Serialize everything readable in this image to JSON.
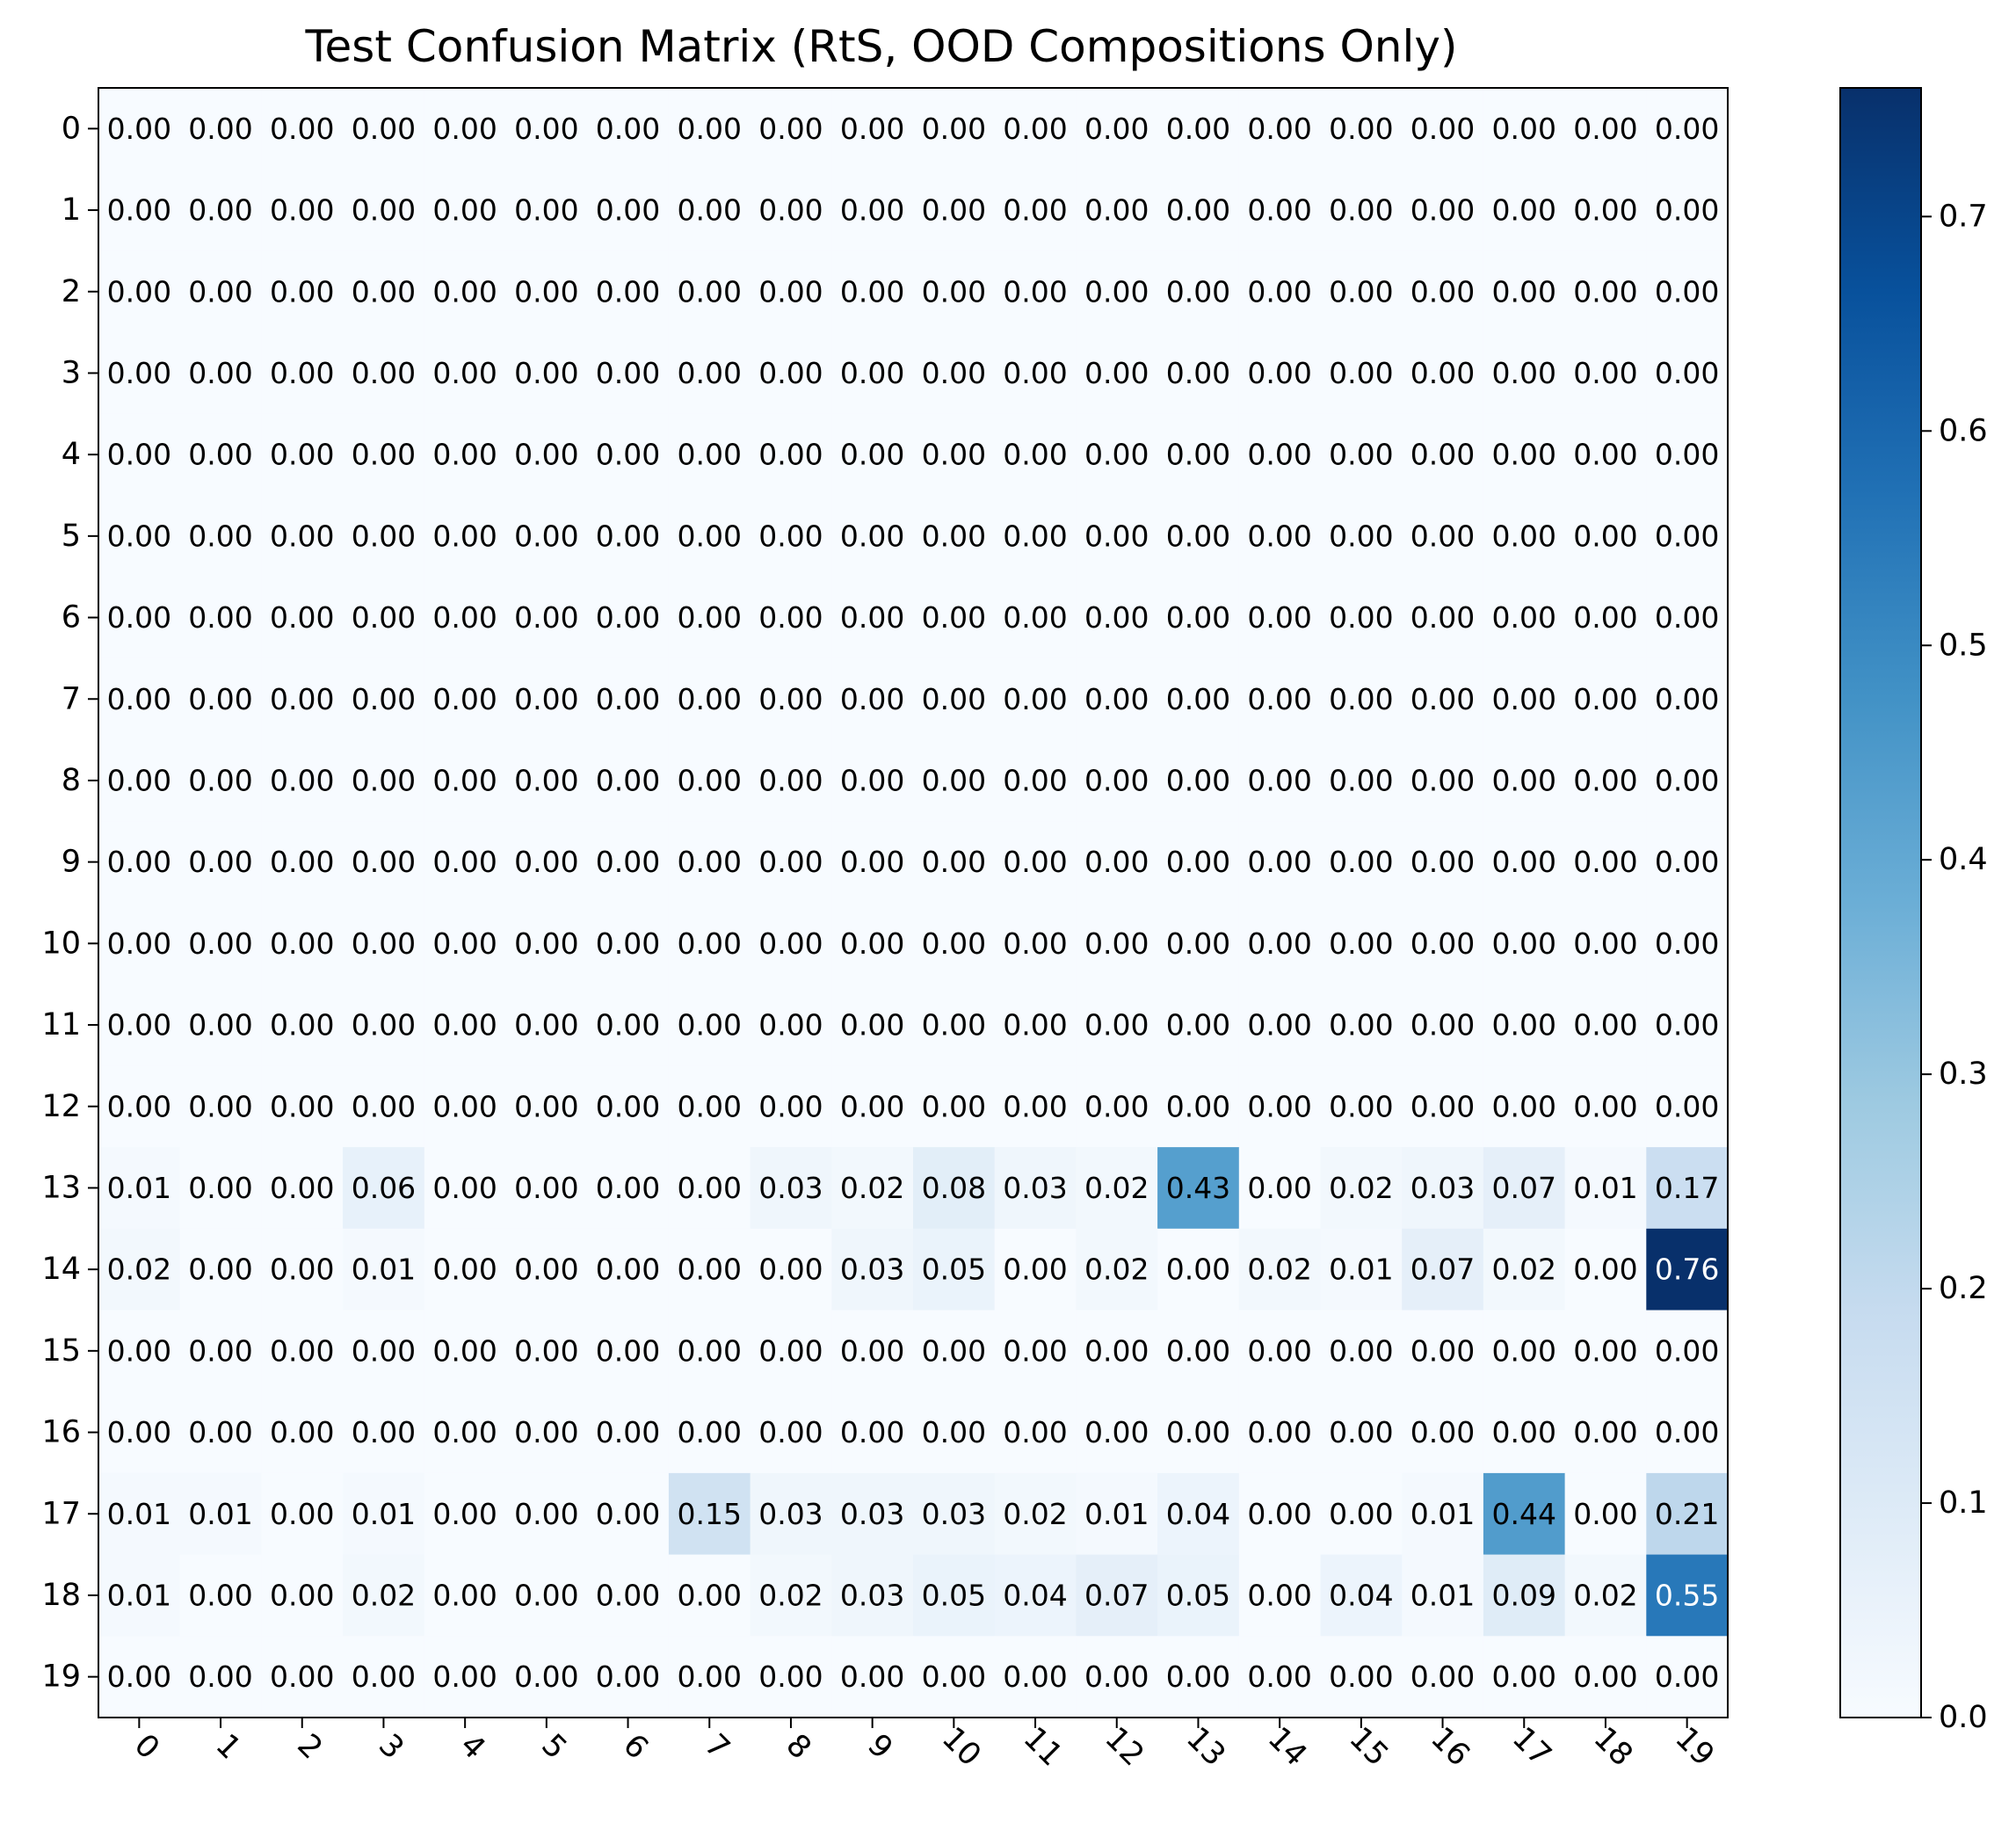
{
  "chart_data": {
    "type": "heatmap",
    "title": "Test Confusion Matrix (RtS, OOD Compositions Only)",
    "xlabel": "",
    "ylabel": "",
    "row_labels": [
      "0",
      "1",
      "2",
      "3",
      "4",
      "5",
      "6",
      "7",
      "8",
      "9",
      "10",
      "11",
      "12",
      "13",
      "14",
      "15",
      "16",
      "17",
      "18",
      "19"
    ],
    "col_labels": [
      "0",
      "1",
      "2",
      "3",
      "4",
      "5",
      "6",
      "7",
      "8",
      "9",
      "10",
      "11",
      "12",
      "13",
      "14",
      "15",
      "16",
      "17",
      "18",
      "19"
    ],
    "values": [
      [
        0,
        0,
        0,
        0,
        0,
        0,
        0,
        0,
        0,
        0,
        0,
        0,
        0,
        0,
        0,
        0,
        0,
        0,
        0,
        0
      ],
      [
        0,
        0,
        0,
        0,
        0,
        0,
        0,
        0,
        0,
        0,
        0,
        0,
        0,
        0,
        0,
        0,
        0,
        0,
        0,
        0
      ],
      [
        0,
        0,
        0,
        0,
        0,
        0,
        0,
        0,
        0,
        0,
        0,
        0,
        0,
        0,
        0,
        0,
        0,
        0,
        0,
        0
      ],
      [
        0,
        0,
        0,
        0,
        0,
        0,
        0,
        0,
        0,
        0,
        0,
        0,
        0,
        0,
        0,
        0,
        0,
        0,
        0,
        0
      ],
      [
        0,
        0,
        0,
        0,
        0,
        0,
        0,
        0,
        0,
        0,
        0,
        0,
        0,
        0,
        0,
        0,
        0,
        0,
        0,
        0
      ],
      [
        0,
        0,
        0,
        0,
        0,
        0,
        0,
        0,
        0,
        0,
        0,
        0,
        0,
        0,
        0,
        0,
        0,
        0,
        0,
        0
      ],
      [
        0,
        0,
        0,
        0,
        0,
        0,
        0,
        0,
        0,
        0,
        0,
        0,
        0,
        0,
        0,
        0,
        0,
        0,
        0,
        0
      ],
      [
        0,
        0,
        0,
        0,
        0,
        0,
        0,
        0,
        0,
        0,
        0,
        0,
        0,
        0,
        0,
        0,
        0,
        0,
        0,
        0
      ],
      [
        0,
        0,
        0,
        0,
        0,
        0,
        0,
        0,
        0,
        0,
        0,
        0,
        0,
        0,
        0,
        0,
        0,
        0,
        0,
        0
      ],
      [
        0,
        0,
        0,
        0,
        0,
        0,
        0,
        0,
        0,
        0,
        0,
        0,
        0,
        0,
        0,
        0,
        0,
        0,
        0,
        0
      ],
      [
        0,
        0,
        0,
        0,
        0,
        0,
        0,
        0,
        0,
        0,
        0,
        0,
        0,
        0,
        0,
        0,
        0,
        0,
        0,
        0
      ],
      [
        0,
        0,
        0,
        0,
        0,
        0,
        0,
        0,
        0,
        0,
        0,
        0,
        0,
        0,
        0,
        0,
        0,
        0,
        0,
        0
      ],
      [
        0,
        0,
        0,
        0,
        0,
        0,
        0,
        0,
        0,
        0,
        0,
        0,
        0,
        0,
        0,
        0,
        0,
        0,
        0,
        0
      ],
      [
        0.01,
        0.0,
        0.0,
        0.06,
        0.0,
        0.0,
        0.0,
        0.0,
        0.03,
        0.02,
        0.08,
        0.03,
        0.02,
        0.43,
        0.0,
        0.02,
        0.03,
        0.07,
        0.01,
        0.17
      ],
      [
        0.02,
        0.0,
        0.0,
        0.01,
        0.0,
        0.0,
        0.0,
        0.0,
        0.0,
        0.03,
        0.05,
        0.0,
        0.02,
        0.0,
        0.02,
        0.01,
        0.07,
        0.02,
        0.0,
        0.76
      ],
      [
        0,
        0,
        0,
        0,
        0,
        0,
        0,
        0,
        0,
        0,
        0,
        0,
        0,
        0,
        0,
        0,
        0,
        0,
        0,
        0
      ],
      [
        0,
        0,
        0,
        0,
        0,
        0,
        0,
        0,
        0,
        0,
        0,
        0,
        0,
        0,
        0,
        0,
        0,
        0,
        0,
        0
      ],
      [
        0.01,
        0.01,
        0.0,
        0.01,
        0.0,
        0.0,
        0.0,
        0.15,
        0.03,
        0.03,
        0.03,
        0.02,
        0.01,
        0.04,
        0.0,
        0.0,
        0.01,
        0.44,
        0.0,
        0.21
      ],
      [
        0.01,
        0.0,
        0.0,
        0.02,
        0.0,
        0.0,
        0.0,
        0.0,
        0.02,
        0.03,
        0.05,
        0.04,
        0.07,
        0.05,
        0.0,
        0.04,
        0.01,
        0.09,
        0.02,
        0.55
      ],
      [
        0,
        0,
        0,
        0,
        0,
        0,
        0,
        0,
        0,
        0,
        0,
        0,
        0,
        0,
        0,
        0,
        0,
        0,
        0,
        0
      ]
    ],
    "value_format": "2 decimals",
    "colormap": "Blues",
    "vmin": 0.0,
    "vmax": 0.76,
    "colorbar_ticks": [
      "0.0",
      "0.1",
      "0.2",
      "0.3",
      "0.4",
      "0.5",
      "0.6",
      "0.7"
    ],
    "colorbar_tick_values": [
      0.0,
      0.1,
      0.2,
      0.3,
      0.4,
      0.5,
      0.6,
      0.7
    ],
    "grid": false,
    "legend": "colorbar-right"
  }
}
